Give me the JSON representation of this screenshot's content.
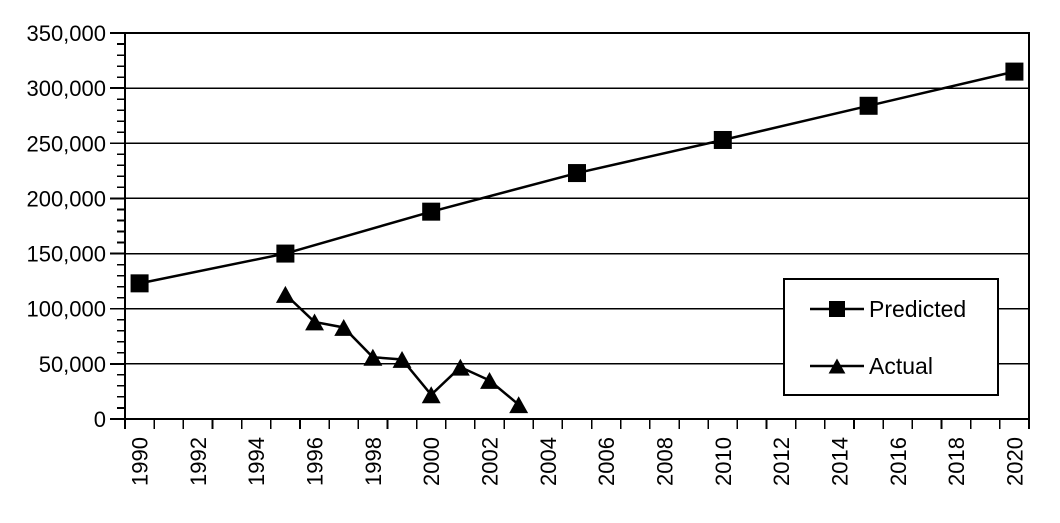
{
  "chart_data": {
    "type": "line",
    "title": "",
    "background_color": "#ffffff",
    "series_color": "#000000",
    "grid": true,
    "x_axis": {
      "min": 1990,
      "max": 2020,
      "label_step": 2,
      "tick_labels": [
        "1990",
        "1992",
        "1994",
        "1996",
        "1998",
        "2000",
        "2002",
        "2004",
        "2006",
        "2008",
        "2010",
        "2012",
        "2014",
        "2016",
        "2018",
        "2020"
      ]
    },
    "y_axis": {
      "min": 0,
      "max": 350000,
      "major_step": 50000,
      "minor_step": 10000,
      "tick_values": [
        0,
        50000,
        100000,
        150000,
        200000,
        250000,
        300000,
        350000
      ],
      "tick_labels": [
        "0",
        "50,000",
        "100,000",
        "150,000",
        "200,000",
        "250,000",
        "300,000",
        "350,000"
      ]
    },
    "series": [
      {
        "name": "Predicted",
        "marker": "square",
        "x": [
          1990,
          1995,
          2000,
          2005,
          2010,
          2015,
          2020
        ],
        "values": [
          123000,
          150000,
          188000,
          223000,
          253000,
          284000,
          315000
        ]
      },
      {
        "name": "Actual",
        "marker": "triangle",
        "x": [
          1995,
          1996,
          1997,
          1998,
          1999,
          2000,
          2001,
          2002,
          2003
        ],
        "values": [
          113000,
          88000,
          83000,
          56000,
          54000,
          22000,
          47000,
          35000,
          13000
        ]
      }
    ],
    "legend": {
      "position": "middle-right",
      "entries": [
        "Predicted",
        "Actual"
      ]
    }
  }
}
